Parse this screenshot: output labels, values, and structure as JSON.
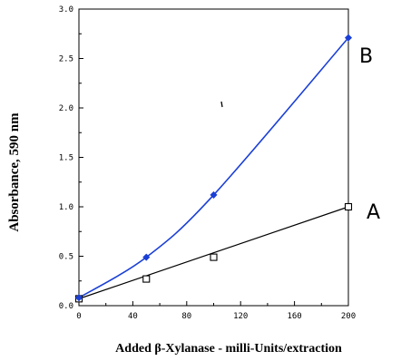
{
  "chart_data": {
    "type": "line",
    "xlabel": "Added β-Xylanase - milli-Units/extraction",
    "ylabel": "Absorbance, 590 nm",
    "xlim": [
      0,
      200
    ],
    "ylim": [
      0,
      3.0
    ],
    "xticks": [
      "0",
      "40",
      "80",
      "120",
      "160",
      "200"
    ],
    "xtick_values": [
      0,
      40,
      80,
      120,
      160,
      200
    ],
    "yticks": [
      "0.0",
      "0.5",
      "1.0",
      "1.5",
      "2.0",
      "2.5",
      "3.0"
    ],
    "ytick_values": [
      0,
      0.5,
      1.0,
      1.5,
      2.0,
      2.5,
      3.0
    ],
    "grid": false,
    "series": [
      {
        "name": "A",
        "color": "#000000",
        "marker": "open-square",
        "x": [
          0,
          50,
          100,
          200
        ],
        "y": [
          0.07,
          0.27,
          0.49,
          1.0
        ]
      },
      {
        "name": "B",
        "color": "#1a3fd6",
        "marker": "filled-diamond",
        "x": [
          0,
          50,
          100,
          200
        ],
        "y": [
          0.08,
          0.49,
          1.12,
          2.71
        ]
      }
    ]
  }
}
